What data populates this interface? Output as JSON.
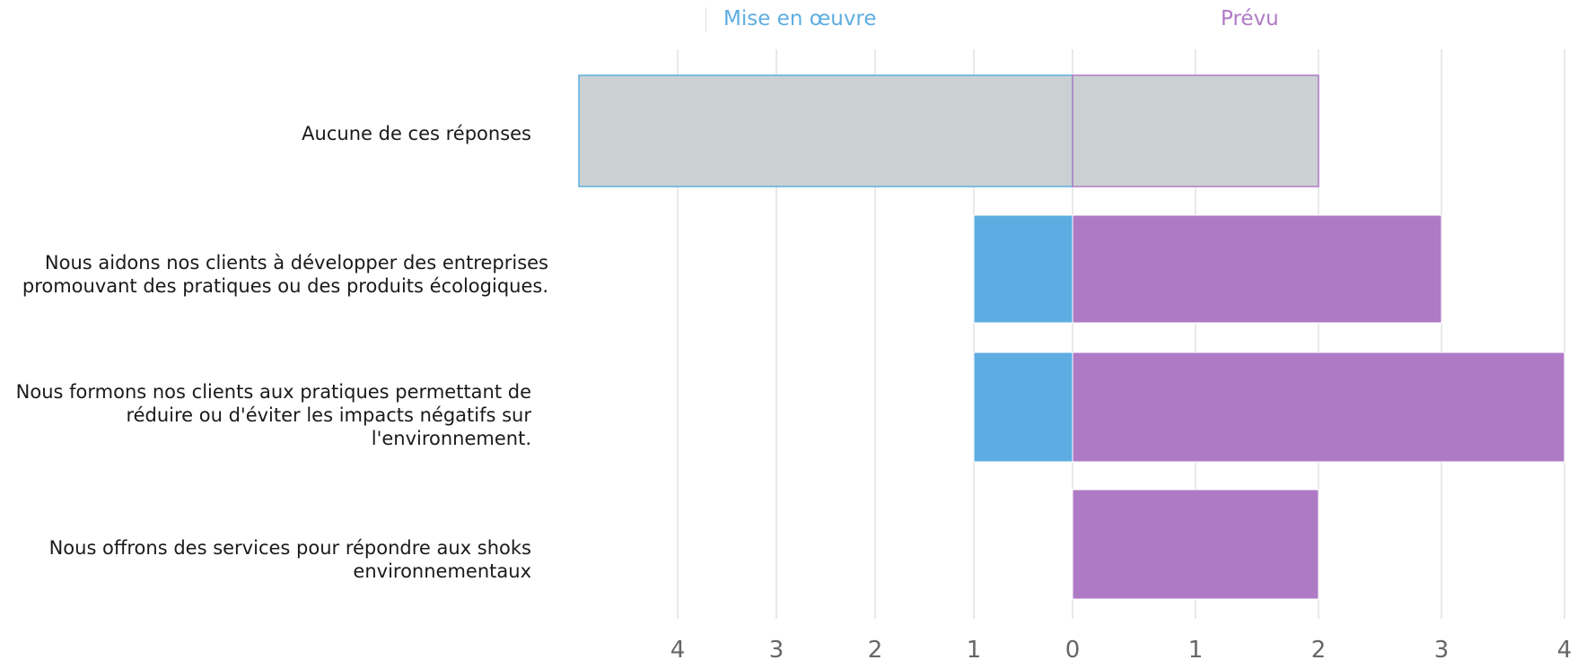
{
  "chart_data": {
    "type": "bar",
    "orientation": "horizontal-diverging",
    "categories": [
      "Aucune de ces réponses",
      "Nous aidons nos clients à développer des entreprises\npromouvant des pratiques ou des produits écologiques.",
      "Nous formons nos clients aux pratiques permettant de\nréduire ou d'éviter les impacts négatifs sur\nl'environnement.",
      "Nous offrons des services pour répondre aux shoks\nenvironnementaux"
    ],
    "series": [
      {
        "name": "Mise en œuvre",
        "values": [
          5,
          1,
          1,
          0
        ],
        "color": "#5dade2",
        "direction": "left"
      },
      {
        "name": "Prévu",
        "values": [
          2,
          3,
          4,
          2
        ],
        "color": "#af7ac5",
        "direction": "right"
      }
    ],
    "highlight_category_index": 0,
    "highlight_fill": "#cbd1d2",
    "left_ticks": [
      "4",
      "3",
      "2",
      "1"
    ],
    "center_tick": "0",
    "right_ticks": [
      "1",
      "2",
      "3",
      "4"
    ],
    "xlim_left": [
      0,
      5
    ],
    "xlim_right": [
      0,
      4
    ],
    "grid": true,
    "legend_position": "top"
  }
}
